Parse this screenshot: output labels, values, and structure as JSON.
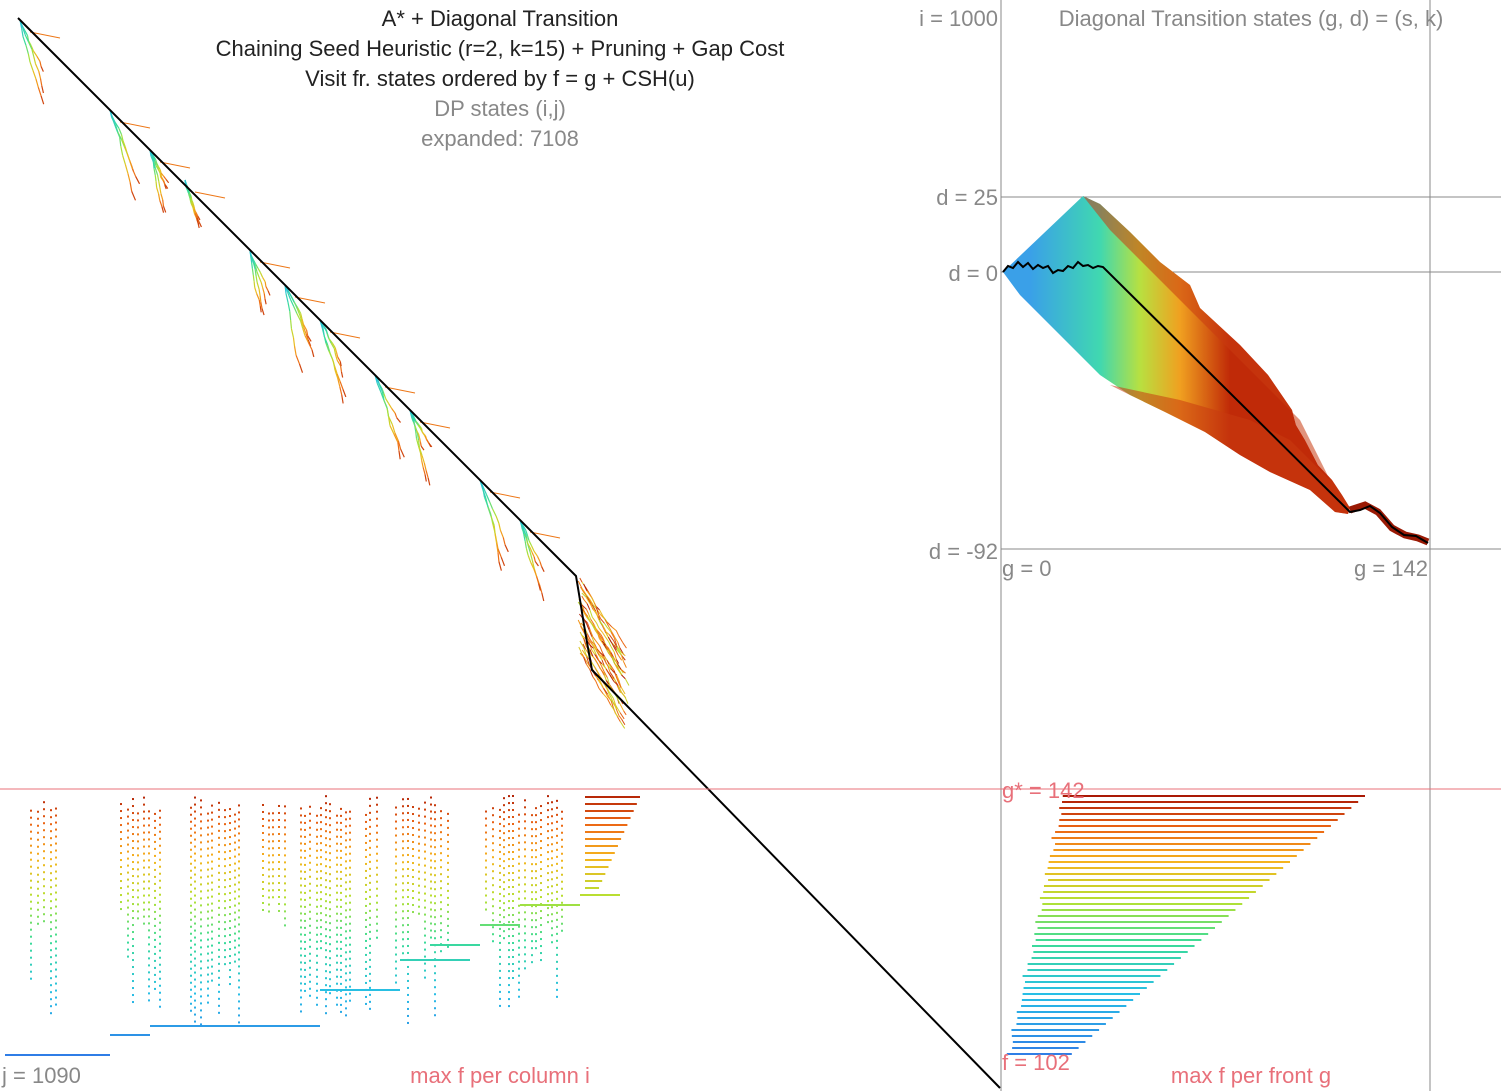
{
  "titles": {
    "title": "A* + Diagonal Transition",
    "heuristic": "Chaining Seed Heuristic (r=2, k=15) + Pruning + Gap Cost",
    "order": "Visit fr. states ordered by f = g + CSH(u)",
    "dp_label": "DP states (i,j)",
    "expanded": "expanded: 7108"
  },
  "dt_panel": {
    "title": "Diagonal Transition states (g, d) = (s, k)",
    "i_label": "i = 1000",
    "d_top": "d = 25",
    "d_zero": "d = 0",
    "d_bottom": "d = -92",
    "g_start": "g = 0",
    "g_end": "g = 142"
  },
  "bottom_panel": {
    "j_label": "j = 1090",
    "left_caption": "max f per column i",
    "gstar": "g* = 142",
    "fmin": "f = 102",
    "right_caption": "max f per front g"
  },
  "grid": {
    "i_max": 1000,
    "j_max": 1090,
    "g_max": 142,
    "d_min": -92,
    "d_max": 25,
    "f_min": 102,
    "g_star": 142
  },
  "colors": {
    "path": "#000000",
    "guide": "#888888",
    "gstar": "#e8707a",
    "title": "#222222",
    "subtitle": "#888888"
  }
}
